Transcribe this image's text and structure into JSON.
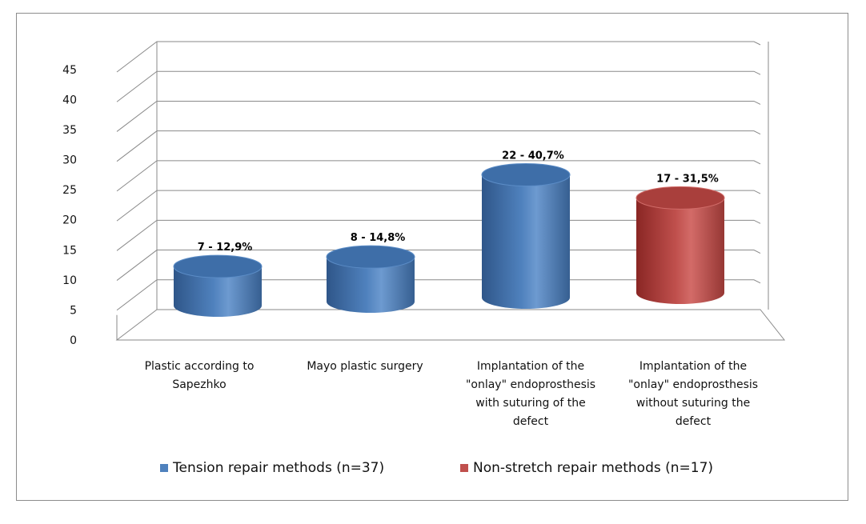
{
  "chart_data": {
    "type": "bar",
    "style": "3d-cylinder",
    "categories": [
      "Plastic according to Sapezhko",
      "Mayo plastic surgery",
      "Implantation of the \"onlay\" endoprosthesis with suturing of the defect",
      "Implantation of the \"onlay\" endoprosthesis without suturing the defect"
    ],
    "values": [
      7,
      8,
      22,
      17
    ],
    "data_labels": [
      "7 - 12,9%",
      "8 - 14,8%",
      "22 - 40,7%",
      "17 - 31,5%"
    ],
    "series_index": [
      0,
      0,
      0,
      1
    ],
    "series": [
      {
        "name": "Tension repair methods (n=37)",
        "color": "#4f81bd",
        "categories": [
          0,
          1,
          2
        ]
      },
      {
        "name": "Non-stretch repair methods (n=17)",
        "color": "#c0504d",
        "categories": [
          3
        ]
      }
    ],
    "ylim": [
      0,
      45
    ],
    "y_ticks": [
      "0",
      "5",
      "10",
      "15",
      "20",
      "25",
      "30",
      "35",
      "40",
      "45"
    ],
    "grid": true,
    "legend_position": "bottom",
    "title": "",
    "xlabel": "",
    "ylabel": ""
  }
}
